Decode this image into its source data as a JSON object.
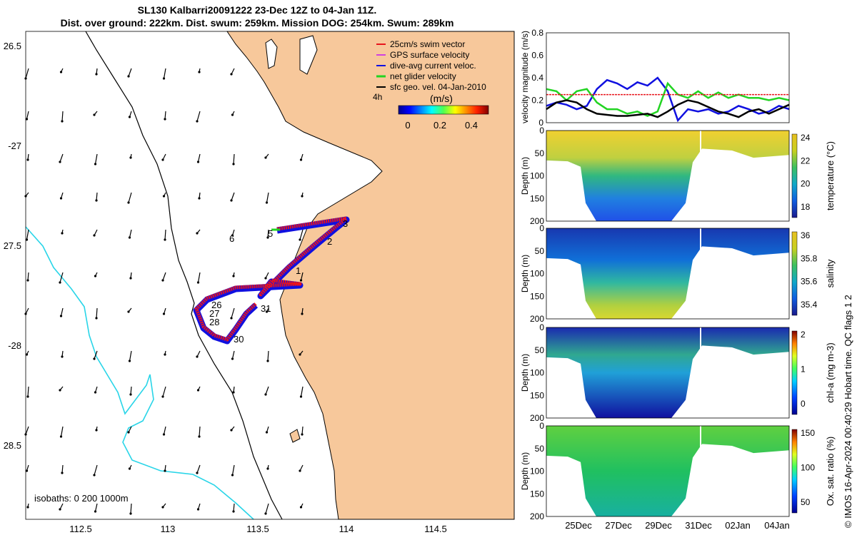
{
  "header": {
    "title": "SL130 Kalbarri20091222 23-Dec 12Z to 04-Jan 11Z.",
    "subtitle": "Dist. over ground: 222km. Dist. swum: 259km. Mission DOG: 254km. Swum: 289km"
  },
  "map": {
    "lat_ticks": [
      "26.5",
      "-27",
      "27.5",
      "-28",
      "28.5"
    ],
    "lon_ticks": [
      "112.5",
      "113",
      "113.5",
      "114",
      "114.5"
    ],
    "isobaths_label": "isobaths: 0   200  1000m",
    "land_color": "#f7c89b",
    "isobath_color": "#29d5e8",
    "day_labels": [
      "1",
      "2",
      "3",
      "5",
      "6",
      "26",
      "27",
      "28",
      "30",
      "31"
    ],
    "colorbar": {
      "time_label": "4h",
      "units": "(m/s)",
      "ticks": [
        "0",
        "0.2",
        "0.4"
      ]
    },
    "legend": [
      {
        "label": "25cm/s swim vector",
        "color": "#e8141c"
      },
      {
        "label": "GPS surface velocity",
        "color": "#d040e0"
      },
      {
        "label": "dive-avg current veloc.",
        "color": "#1010e0"
      },
      {
        "label": "net glider velocity",
        "color": "#22d422"
      },
      {
        "label": "sfc geo. vel. 04-Jan-2010",
        "color": "#000000"
      }
    ]
  },
  "chart_data": [
    {
      "type": "line",
      "title": "",
      "ylabel": "velocity magnitude (m/s)",
      "ylim": [
        0,
        0.8
      ],
      "yticks": [
        "0",
        "0.2",
        "0.4",
        "0.6",
        "0.8"
      ],
      "x": [
        0,
        0.5,
        1,
        1.5,
        2,
        2.5,
        3,
        3.5,
        4,
        4.5,
        5,
        5.5,
        6,
        6.5,
        7,
        7.5,
        8,
        8.5,
        9,
        9.5,
        10,
        10.5,
        11,
        11.5,
        12
      ],
      "series": [
        {
          "name": "dive-avg current veloc.",
          "color": "#1010e0",
          "values": [
            0.15,
            0.18,
            0.16,
            0.12,
            0.15,
            0.3,
            0.38,
            0.35,
            0.3,
            0.36,
            0.33,
            0.4,
            0.28,
            0.02,
            0.12,
            0.1,
            0.12,
            0.08,
            0.1,
            0.15,
            0.12,
            0.08,
            0.1,
            0.15,
            0.12
          ]
        },
        {
          "name": "net glider velocity",
          "color": "#22d422",
          "values": [
            0.3,
            0.28,
            0.2,
            0.28,
            0.3,
            0.18,
            0.12,
            0.12,
            0.08,
            0.1,
            0.06,
            0.1,
            0.35,
            0.25,
            0.22,
            0.28,
            0.22,
            0.27,
            0.22,
            0.25,
            0.22,
            0.22,
            0.2,
            0.22,
            0.2
          ]
        },
        {
          "name": "sfc geo. vel.",
          "color": "#000000",
          "values": [
            0.12,
            0.18,
            0.2,
            0.18,
            0.12,
            0.08,
            0.07,
            0.06,
            0.06,
            0.07,
            0.08,
            0.05,
            0.1,
            0.16,
            0.2,
            0.18,
            0.14,
            0.1,
            0.08,
            0.05,
            0.1,
            0.12,
            0.08,
            0.12,
            0.16
          ]
        },
        {
          "name": "25cm/s swim vector",
          "color": "#e8141c",
          "values": [
            0.25,
            0.25,
            0.25,
            0.25,
            0.25,
            0.25,
            0.25,
            0.25,
            0.25,
            0.25,
            0.25,
            0.25,
            0.25,
            0.25,
            0.25,
            0.25,
            0.25,
            0.25,
            0.25,
            0.25,
            0.25,
            0.25,
            0.25,
            0.25,
            0.25
          ]
        }
      ]
    },
    {
      "type": "heatmap",
      "ylabel": "Depth (m)",
      "colorbar_label": "temperature (°C)",
      "ylim": [
        200,
        0
      ],
      "yticks": [
        "0",
        "50",
        "100",
        "150",
        "200"
      ],
      "cticks": [
        "18",
        "20",
        "22",
        "24"
      ]
    },
    {
      "type": "heatmap",
      "ylabel": "Depth (m)",
      "colorbar_label": "salinity",
      "ylim": [
        200,
        0
      ],
      "yticks": [
        "0",
        "50",
        "100",
        "150",
        "200"
      ],
      "cticks": [
        "35.4",
        "35.6",
        "35.8",
        "36"
      ]
    },
    {
      "type": "heatmap",
      "ylabel": "Depth (m)",
      "colorbar_label": "chl-a (mg m-3)",
      "ylim": [
        200,
        0
      ],
      "yticks": [
        "0",
        "50",
        "100",
        "150",
        "200"
      ],
      "cticks": [
        "0",
        "1",
        "2"
      ]
    },
    {
      "type": "heatmap",
      "ylabel": "Depth (m)",
      "colorbar_label": "Ox. sat. ratio (%)",
      "ylim": [
        200,
        0
      ],
      "yticks": [
        "0",
        "50",
        "100",
        "150",
        "200"
      ],
      "cticks": [
        "50",
        "100",
        "150"
      ],
      "xticks": [
        "25Dec",
        "27Dec",
        "29Dec",
        "31Dec",
        "02Jan",
        "04Jan"
      ]
    }
  ],
  "footer": {
    "credit": "© IMOS 16-Apr-2024 00:40:29 Hobart time. QC flags 1  2"
  }
}
